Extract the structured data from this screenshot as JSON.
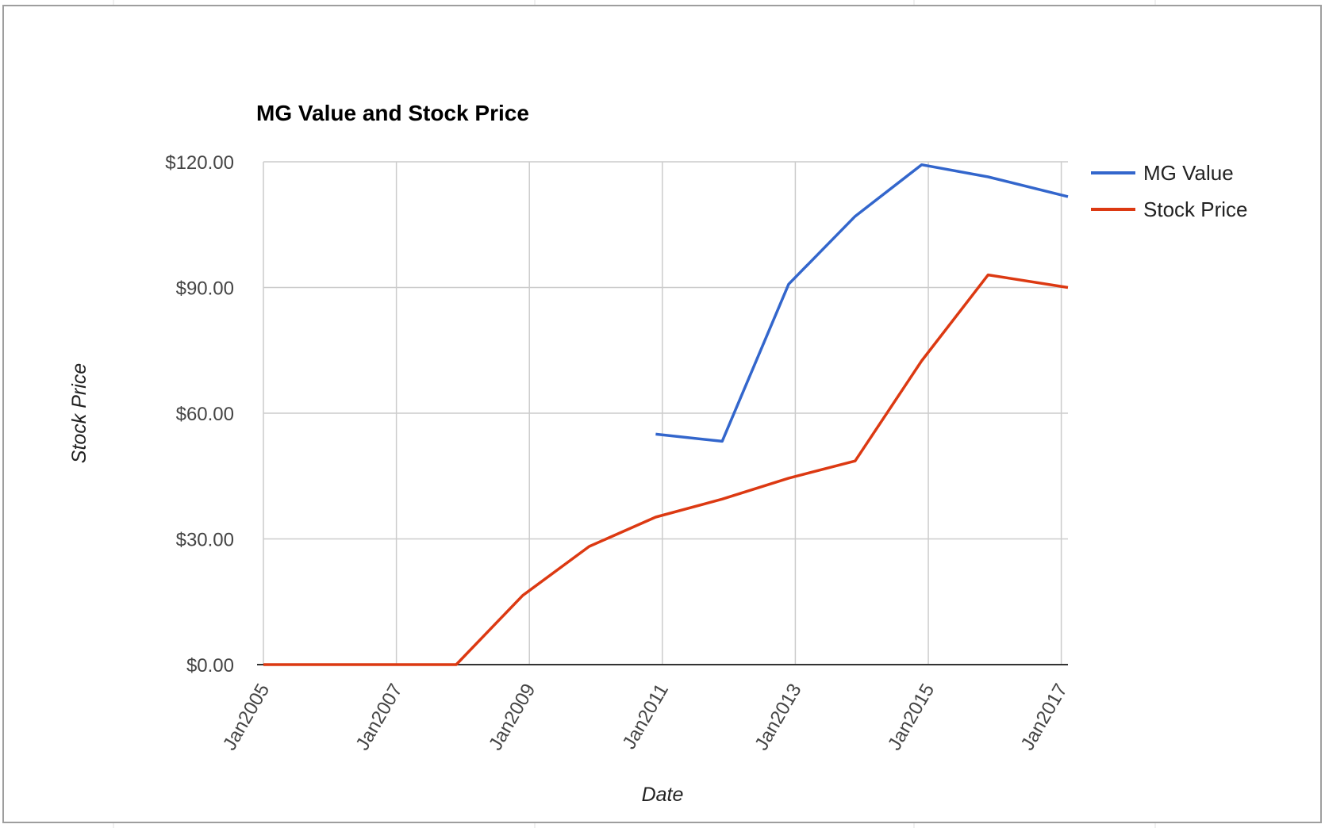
{
  "chart_data": {
    "type": "line",
    "title": "MG Value and Stock Price",
    "xlabel": "Date",
    "ylabel": "Stock Price",
    "x_ticks": [
      "Jan2005",
      "Jan2007",
      "Jan2009",
      "Jan2011",
      "Jan2013",
      "Jan2015",
      "Jan2017"
    ],
    "y_ticks": [
      "$0.00",
      "$30.00",
      "$60.00",
      "$90.00",
      "$120.00"
    ],
    "xlim": [
      2005.0,
      2017.1
    ],
    "ylim": [
      0,
      120
    ],
    "grid": true,
    "legend_position": "right",
    "series": [
      {
        "name": "MG Value",
        "color": "#3366cc",
        "points": [
          {
            "x": 2010.9,
            "y": 55.0
          },
          {
            "x": 2011.9,
            "y": 53.3
          },
          {
            "x": 2012.9,
            "y": 90.8
          },
          {
            "x": 2013.9,
            "y": 107.0
          },
          {
            "x": 2014.9,
            "y": 119.3
          },
          {
            "x": 2015.9,
            "y": 116.4
          },
          {
            "x": 2017.1,
            "y": 111.7
          }
        ]
      },
      {
        "name": "Stock Price",
        "color": "#dc3912",
        "points": [
          {
            "x": 2005.0,
            "y": 0.0
          },
          {
            "x": 2007.9,
            "y": 0.0
          },
          {
            "x": 2008.9,
            "y": 16.5
          },
          {
            "x": 2009.9,
            "y": 28.2
          },
          {
            "x": 2010.9,
            "y": 35.2
          },
          {
            "x": 2011.9,
            "y": 39.5
          },
          {
            "x": 2012.9,
            "y": 44.5
          },
          {
            "x": 2013.9,
            "y": 48.6
          },
          {
            "x": 2014.9,
            "y": 72.5
          },
          {
            "x": 2015.9,
            "y": 93.0
          },
          {
            "x": 2017.1,
            "y": 90.0
          }
        ]
      }
    ]
  }
}
